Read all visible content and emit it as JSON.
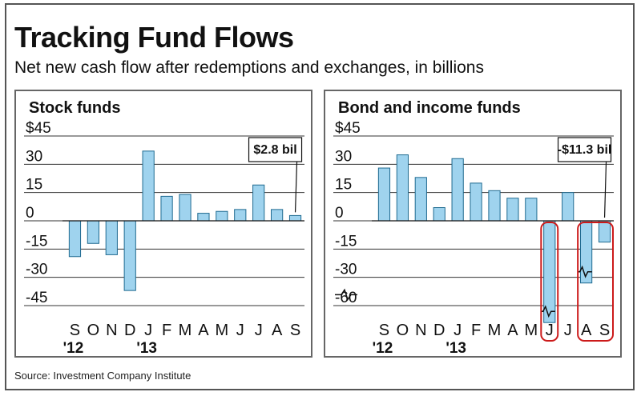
{
  "header": {
    "title": "Tracking Fund Flows",
    "subtitle": "Net new cash flow after redemptions and exchanges, in billions"
  },
  "footer": {
    "source": "Source: Investment Company Institute"
  },
  "colors": {
    "bar": "#9fd3ee",
    "bar_stroke": "#1f6a90",
    "highlight": "#cc1a1a",
    "grid": "#333333"
  },
  "chart_data": [
    {
      "type": "bar",
      "title": "Stock funds",
      "categories": [
        "S",
        "O",
        "N",
        "D",
        "J",
        "F",
        "M",
        "A",
        "M",
        "J",
        "J",
        "A",
        "S"
      ],
      "year_labels": [
        {
          "text": "'12",
          "at": "S"
        },
        {
          "text": "'13",
          "at": "J"
        }
      ],
      "values": [
        -19,
        -12,
        -18,
        -37,
        37,
        13,
        14,
        4,
        5,
        6,
        19,
        6,
        2.8
      ],
      "yticks": [
        {
          "label": "$45",
          "value": 45
        },
        {
          "label": "30",
          "value": 30
        },
        {
          "label": "15",
          "value": 15
        },
        {
          "label": "0",
          "value": 0
        },
        {
          "label": "-15",
          "value": -15
        },
        {
          "label": "-30",
          "value": -30
        },
        {
          "label": "-45",
          "value": -45
        }
      ],
      "ylim": [
        -45,
        45
      ],
      "grid": true,
      "annotation": {
        "text": "$2.8 bil",
        "category_index": 12
      }
    },
    {
      "type": "bar",
      "title": "Bond and income funds",
      "categories": [
        "S",
        "O",
        "N",
        "D",
        "J",
        "F",
        "M",
        "A",
        "M",
        "J",
        "J",
        "A",
        "S"
      ],
      "year_labels": [
        {
          "text": "'12",
          "at": "S"
        },
        {
          "text": "'13",
          "at": "J"
        }
      ],
      "values": [
        28,
        35,
        23,
        7,
        33,
        20,
        16,
        12,
        12,
        -69,
        15,
        -36,
        -11.3
      ],
      "yticks": [
        {
          "label": "$45",
          "value": 45
        },
        {
          "label": "30",
          "value": 30
        },
        {
          "label": "15",
          "value": 15
        },
        {
          "label": "0",
          "value": 0
        },
        {
          "label": "-15",
          "value": -15
        },
        {
          "label": "-30",
          "value": -30
        },
        {
          "label": "-60",
          "value": -60
        }
      ],
      "ylim": [
        -60,
        45
      ],
      "axis_break": true,
      "grid": true,
      "annotation": {
        "text": "-$11.3 bil",
        "category_index": 12
      },
      "highlighted_categories": [
        9,
        11,
        12
      ]
    }
  ]
}
